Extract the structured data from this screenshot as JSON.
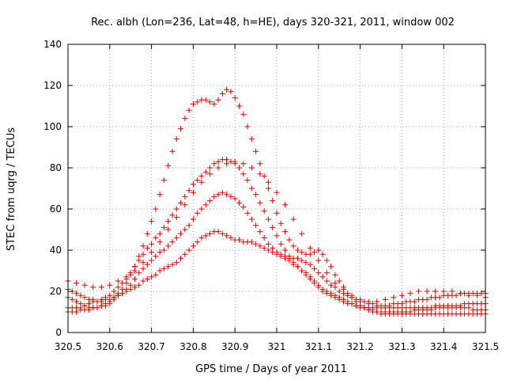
{
  "chart_data": {
    "type": "scatter",
    "title": "Rec. albh (Lon=236, Lat=48, h=HE), days 320-321, 2011, window 002",
    "xlabel": "GPS time / Days of year 2011",
    "ylabel": "STEC from uqrg / TECUs",
    "xlim": [
      320.5,
      321.5
    ],
    "ylim": [
      0,
      140
    ],
    "xticks": [
      "320.5",
      "320.6",
      "320.7",
      "320.8",
      "320.9",
      "321",
      "321.1",
      "321.2",
      "321.3",
      "321.4",
      "321.5"
    ],
    "yticks": [
      "0",
      "20",
      "40",
      "60",
      "80",
      "100",
      "120",
      "140"
    ],
    "grid": true,
    "legend": "none",
    "marker": "+",
    "color": "#dd0000",
    "series": [
      {
        "x": [
          320.5,
          320.51,
          320.52,
          320.53,
          320.54,
          320.55,
          320.56,
          320.57,
          320.58,
          320.59,
          320.6,
          320.61,
          320.62,
          320.63,
          320.64,
          320.65,
          320.66,
          320.67,
          320.68,
          320.69,
          320.7,
          320.71,
          320.72,
          320.73,
          320.74,
          320.75,
          320.76,
          320.77,
          320.78,
          320.79,
          320.8,
          320.81,
          320.82,
          320.83,
          320.84,
          320.85,
          320.86,
          320.87,
          320.88,
          320.89,
          320.9,
          320.91,
          320.92,
          320.93,
          320.94,
          320.95,
          320.96,
          320.97,
          320.98,
          320.99,
          321,
          321.01,
          321.02,
          321.03,
          321.04,
          321.05,
          321.06,
          321.07,
          321.08,
          321.09,
          321.1,
          321.11,
          321.12,
          321.13,
          321.14,
          321.15,
          321.16,
          321.17,
          321.18,
          321.19,
          321.2,
          321.21,
          321.22,
          321.23,
          321.24,
          321.25,
          321.26,
          321.27,
          321.28,
          321.29,
          321.3,
          321.31,
          321.32,
          321.33,
          321.34,
          321.35,
          321.36,
          321.37,
          321.38,
          321.39,
          321.4,
          321.41,
          321.42,
          321.43,
          321.44,
          321.45,
          321.46,
          321.47,
          321.48,
          321.49,
          321.5
        ],
        "y": [
          12,
          12,
          12,
          12,
          13,
          14,
          15,
          15,
          16,
          17,
          18,
          20,
          22,
          24,
          26,
          29,
          32,
          35,
          38,
          41,
          43,
          46,
          48,
          51,
          54,
          57,
          60,
          63,
          66,
          69,
          72,
          74,
          76,
          78,
          80,
          82,
          83,
          84,
          84,
          83,
          82,
          80,
          77,
          74,
          70,
          67,
          63,
          59,
          55,
          51,
          47,
          43,
          40,
          37,
          34,
          32,
          30,
          28,
          26,
          24,
          22,
          20,
          19,
          18,
          17,
          16,
          15,
          14,
          14,
          13,
          13,
          12,
          12,
          12,
          12,
          12,
          12,
          12,
          12,
          12,
          12,
          12,
          12,
          12,
          12,
          12,
          12,
          12,
          13,
          13,
          13,
          13,
          13,
          13,
          13,
          14,
          14,
          14,
          14,
          14,
          14
        ]
      },
      {
        "x": [
          320.5,
          320.51,
          320.52,
          320.53,
          320.54,
          320.55,
          320.56,
          320.57,
          320.58,
          320.59,
          320.6,
          320.61,
          320.62,
          320.63,
          320.64,
          320.65,
          320.66,
          320.67,
          320.68,
          320.69,
          320.7,
          320.71,
          320.72,
          320.73,
          320.74,
          320.75,
          320.76,
          320.77,
          320.78,
          320.79,
          320.8,
          320.81,
          320.82,
          320.83,
          320.84,
          320.85,
          320.86,
          320.87,
          320.88,
          320.89,
          320.9,
          320.91,
          320.92,
          320.93,
          320.94,
          320.95,
          320.96,
          320.97,
          320.98,
          320.99,
          321,
          321.01,
          321.02,
          321.03,
          321.04,
          321.05,
          321.06,
          321.07,
          321.08,
          321.09,
          321.1,
          321.11,
          321.12,
          321.13,
          321.14,
          321.15,
          321.16,
          321.17,
          321.18,
          321.19,
          321.2,
          321.21,
          321.22,
          321.23,
          321.24,
          321.25,
          321.26,
          321.27,
          321.28,
          321.29,
          321.3,
          321.31,
          321.32,
          321.33,
          321.34,
          321.35,
          321.36,
          321.37,
          321.38,
          321.39,
          321.4,
          321.41,
          321.42,
          321.43,
          321.44,
          321.45,
          321.46,
          321.47,
          321.48,
          321.49,
          321.5
        ],
        "y": [
          17,
          16,
          15,
          14,
          13,
          12,
          12,
          12,
          13,
          13,
          14,
          16,
          18,
          19,
          21,
          23,
          26,
          29,
          31,
          33,
          35,
          37,
          39,
          40,
          42,
          44,
          46,
          48,
          50,
          52,
          55,
          58,
          60,
          62,
          64,
          66,
          67,
          68,
          67,
          66,
          65,
          63,
          61,
          58,
          55,
          52,
          49,
          46,
          43,
          41,
          39,
          38,
          37,
          36,
          36,
          36,
          35,
          34,
          33,
          31,
          29,
          27,
          25,
          23,
          22,
          20,
          19,
          18,
          17,
          16,
          15,
          15,
          14,
          14,
          13,
          13,
          13,
          13,
          14,
          14,
          14,
          15,
          15,
          15,
          16,
          16,
          16,
          17,
          17,
          17,
          18,
          18,
          18,
          18,
          19,
          19,
          19,
          19,
          19,
          19,
          19
        ]
      },
      {
        "x": [
          320.5,
          320.51,
          320.52,
          320.53,
          320.54,
          320.55,
          320.56,
          320.57,
          320.58,
          320.59,
          320.6,
          320.61,
          320.62,
          320.63,
          320.64,
          320.65,
          320.66,
          320.67,
          320.68,
          320.69,
          320.7,
          320.71,
          320.72,
          320.73,
          320.74,
          320.75,
          320.76,
          320.77,
          320.78,
          320.79,
          320.8,
          320.81,
          320.82,
          320.83,
          320.84,
          320.85,
          320.86,
          320.87,
          320.88,
          320.89,
          320.9,
          320.91,
          320.92,
          320.93,
          320.94,
          320.95,
          320.96,
          320.97,
          320.98,
          320.99,
          321,
          321.01,
          321.02,
          321.03,
          321.04,
          321.05,
          321.06,
          321.07,
          321.08,
          321.09,
          321.1,
          321.11,
          321.12,
          321.13,
          321.14,
          321.15,
          321.16,
          321.17,
          321.18,
          321.19,
          321.2,
          321.21,
          321.22,
          321.23,
          321.24,
          321.25,
          321.26,
          321.27,
          321.28,
          321.29,
          321.3,
          321.31,
          321.32,
          321.33,
          321.34,
          321.35,
          321.36,
          321.37,
          321.38,
          321.39,
          321.4,
          321.41,
          321.42,
          321.43,
          321.44,
          321.45,
          321.46,
          321.47,
          321.48,
          321.49,
          321.5
        ],
        "y": [
          21,
          20,
          19,
          18,
          17,
          16,
          16,
          15,
          15,
          16,
          16,
          17,
          18,
          19,
          20,
          21,
          22,
          23,
          25,
          26,
          27,
          28,
          30,
          31,
          32,
          33,
          34,
          36,
          38,
          40,
          42,
          44,
          46,
          47,
          48,
          49,
          49,
          48,
          47,
          46,
          45,
          45,
          44,
          44,
          44,
          43,
          42,
          41,
          40,
          39,
          38,
          37,
          36,
          35,
          33,
          32,
          30,
          29,
          27,
          25,
          23,
          21,
          20,
          19,
          18,
          17,
          16,
          15,
          14,
          13,
          12,
          12,
          11,
          11,
          10,
          10,
          10,
          10,
          10,
          10,
          10,
          10,
          10,
          11,
          11,
          11,
          11,
          11,
          12,
          12,
          12,
          12,
          12,
          12,
          12,
          12,
          12,
          11,
          11,
          11,
          11
        ]
      },
      {
        "x": [
          320.5,
          320.51,
          320.52,
          320.53,
          320.54,
          320.55,
          320.56,
          320.57,
          320.58,
          320.59,
          320.6,
          320.61,
          320.62,
          320.63,
          320.64,
          320.65,
          320.66,
          320.67,
          320.68,
          320.69,
          320.7,
          320.71,
          320.72,
          320.73,
          320.74,
          320.75,
          320.76,
          320.77,
          320.78,
          320.79,
          320.8,
          320.81,
          320.82,
          320.83,
          320.84,
          320.85,
          320.86,
          320.87,
          320.88,
          320.89,
          320.9,
          320.91,
          320.92,
          320.93,
          320.94,
          320.95,
          320.96,
          320.97,
          320.98,
          320.99,
          321,
          321.01,
          321.02,
          321.03,
          321.04,
          321.05,
          321.06,
          321.07,
          321.08,
          321.09,
          321.1,
          321.11,
          321.12,
          321.13,
          321.14,
          321.15,
          321.16,
          321.17,
          321.18,
          321.19,
          321.2,
          321.21,
          321.22,
          321.23,
          321.24,
          321.25,
          321.26,
          321.27,
          321.28,
          321.29,
          321.3,
          321.31,
          321.32,
          321.33,
          321.34,
          321.35,
          321.36,
          321.37,
          321.38,
          321.39,
          321.4,
          321.41,
          321.42,
          321.43,
          321.44,
          321.45,
          321.46,
          321.47,
          321.48,
          321.49,
          321.5
        ],
        "y": [
          10,
          10,
          10,
          11,
          11,
          11,
          12,
          12,
          13,
          14,
          15,
          17,
          19,
          21,
          24,
          28,
          32,
          37,
          42,
          48,
          54,
          60,
          67,
          74,
          81,
          88,
          94,
          99,
          104,
          108,
          111,
          112,
          113,
          113,
          112,
          111,
          113,
          116,
          118,
          117,
          114,
          110,
          106,
          100,
          94,
          88,
          82,
          76,
          70,
          64,
          58,
          53,
          49,
          45,
          42,
          40,
          39,
          38,
          38,
          39,
          40,
          38,
          35,
          32,
          28,
          25,
          22,
          19,
          17,
          15,
          13,
          12,
          11,
          10,
          10,
          9,
          9,
          9,
          9,
          9,
          9,
          9,
          9,
          9,
          9,
          9,
          9,
          9,
          9,
          9,
          9,
          9,
          9,
          9,
          9,
          9,
          9,
          9,
          9,
          9,
          9
        ]
      },
      {
        "x": [
          320.5,
          320.52,
          320.54,
          320.56,
          320.58,
          320.6,
          320.62,
          320.64,
          320.66,
          320.68,
          320.7,
          320.72,
          320.74,
          320.76,
          320.78,
          320.8,
          320.82,
          320.84,
          320.86,
          320.88,
          320.9,
          320.92,
          320.94,
          320.96,
          320.98,
          321,
          321.02,
          321.04,
          321.06,
          321.08,
          321.1,
          321.12,
          321.14,
          321.16,
          321.18,
          321.2,
          321.22,
          321.24,
          321.26,
          321.28,
          321.3,
          321.32,
          321.34,
          321.36,
          321.38,
          321.4,
          321.42,
          321.44,
          321.46,
          321.48,
          321.5
        ],
        "y": [
          25,
          24,
          23,
          22,
          22,
          23,
          25,
          27,
          30,
          34,
          39,
          44,
          50,
          56,
          62,
          68,
          73,
          77,
          80,
          82,
          83,
          82,
          80,
          77,
          73,
          68,
          62,
          55,
          48,
          41,
          35,
          29,
          24,
          21,
          18,
          16,
          15,
          15,
          16,
          17,
          18,
          19,
          20,
          20,
          20,
          20,
          20,
          19,
          18,
          18,
          17
        ]
      }
    ]
  }
}
